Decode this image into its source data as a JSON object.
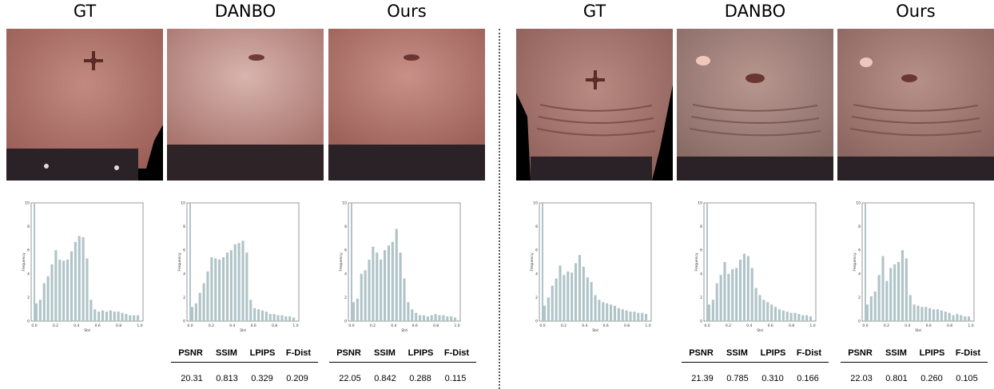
{
  "panels": [
    {
      "title": "GT",
      "hist": [
        1.5,
        1.8,
        3.2,
        3.8,
        4.8,
        6,
        5.2,
        5.1,
        5.2,
        5.9,
        6.7,
        7.2,
        7.1,
        5.3,
        1.8,
        1,
        0.8,
        0.9,
        0.8,
        0.9,
        0.8,
        0.8,
        0.7,
        0.6,
        0.5,
        0.5,
        0.5
      ]
    },
    {
      "title": "DANBO",
      "hist": [
        1.2,
        1.5,
        2.4,
        3.2,
        4.2,
        5.4,
        5.3,
        5.2,
        5.4,
        5.8,
        6,
        6.5,
        6.6,
        6.8,
        5.8,
        1.8,
        1.1,
        1,
        0.9,
        0.8,
        0.6,
        0.6,
        0.5,
        0.5,
        0.4,
        0.4,
        0.3
      ]
    },
    {
      "title": "Ours",
      "hist": [
        1.6,
        1.9,
        4,
        4.3,
        5.2,
        6.3,
        5.8,
        5.2,
        6,
        6.4,
        6.7,
        7.8,
        5.8,
        3.6,
        1.6,
        1,
        0.7,
        0.5,
        0.5,
        0.4,
        0.5,
        0.6,
        0.5,
        0.5,
        0.4,
        0.4,
        0.3
      ]
    },
    {
      "title": "GT",
      "hist": [
        1.3,
        2,
        3,
        3.6,
        4.7,
        3.9,
        4.2,
        4.1,
        4.9,
        5.6,
        4.6,
        3.7,
        3.3,
        2.2,
        1.8,
        1.6,
        1.5,
        1.4,
        1.3,
        1.1,
        1,
        0.9,
        0.8,
        0.8,
        0.7,
        0.7,
        0.6
      ]
    },
    {
      "title": "DANBO",
      "hist": [
        1.4,
        1.8,
        3.2,
        3.9,
        5,
        4,
        4.4,
        4.5,
        5.2,
        5.7,
        5.5,
        4.5,
        2.8,
        2.2,
        1.8,
        1.6,
        1.4,
        1.2,
        1,
        0.9,
        0.8,
        0.7,
        0.7,
        0.6,
        0.5,
        0.5,
        0.4
      ]
    },
    {
      "title": "Ours",
      "hist": [
        1.4,
        2.1,
        2.5,
        3.9,
        5.5,
        3.4,
        4.5,
        4.8,
        5,
        6,
        5.3,
        2.2,
        1.4,
        1.3,
        1.2,
        1.2,
        1.1,
        1,
        1,
        0.9,
        0.8,
        0.7,
        0.5,
        0.6,
        0.5,
        0.4,
        0.4
      ]
    }
  ],
  "hist_axes": {
    "xlabel": "Std",
    "ylabel": "Frequency",
    "xticks": [
      "0.0",
      "0.2",
      "0.4",
      "0.6",
      "0.8",
      "1.0"
    ],
    "yticks": [
      "0",
      "2",
      "4",
      "6",
      "8",
      "10"
    ],
    "ylim": [
      0,
      10
    ],
    "spike_value": 10
  },
  "metrics_headers": [
    "PSNR",
    "SSIM",
    "LPIPS",
    "F-Dist"
  ],
  "metrics": [
    {
      "panel": "DANBO",
      "values": [
        "20.31",
        "0.813",
        "0.329",
        "0.209"
      ]
    },
    {
      "panel": "Ours",
      "values": [
        "22.05",
        "0.842",
        "0.288",
        "0.115"
      ]
    },
    {
      "panel": "DANBO",
      "values": [
        "21.39",
        "0.785",
        "0.310",
        "0.166"
      ]
    },
    {
      "panel": "Ours",
      "values": [
        "22.03",
        "0.801",
        "0.260",
        "0.105"
      ]
    }
  ],
  "colors": {
    "bar": "#b0c4c8",
    "skin_gt": "#b0766c",
    "skin_danbo": "#c29a94",
    "skin_ours": "#b98078",
    "pants": "#2a2226",
    "background": "#000000"
  }
}
